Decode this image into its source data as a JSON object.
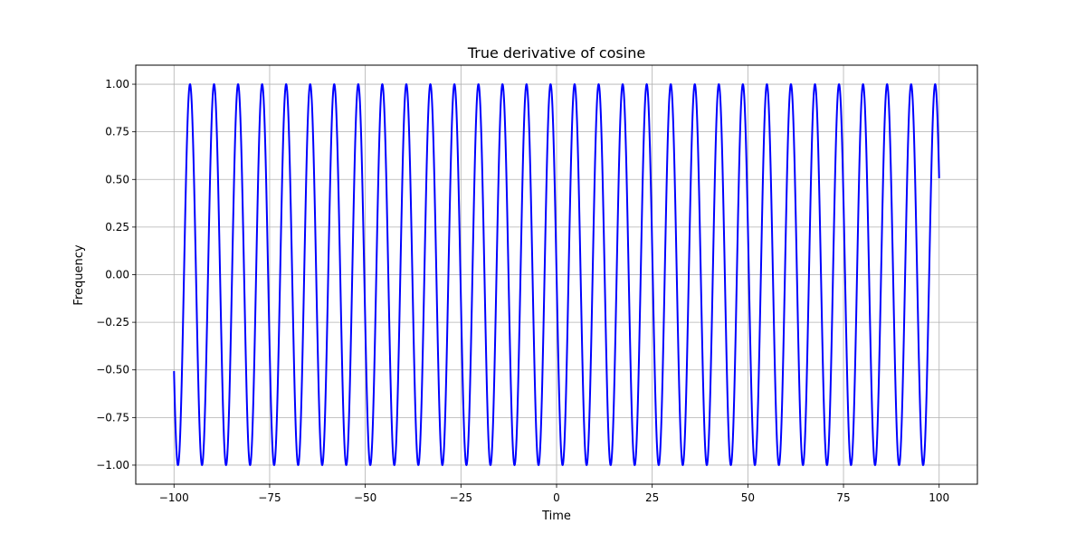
{
  "chart_data": {
    "type": "line",
    "title": "True derivative of cosine",
    "xlabel": "Time",
    "ylabel": "Frequency",
    "xlim": [
      -110,
      110
    ],
    "ylim": [
      -1.1,
      1.1
    ],
    "x_ticks": [
      -100,
      -75,
      -50,
      -25,
      0,
      25,
      50,
      75,
      100
    ],
    "x_tick_labels": [
      "−100",
      "−75",
      "−50",
      "−25",
      "0",
      "25",
      "50",
      "75",
      "100"
    ],
    "y_ticks": [
      -1.0,
      -0.75,
      -0.5,
      -0.25,
      0.0,
      0.25,
      0.5,
      0.75,
      1.0
    ],
    "y_tick_labels": [
      "−1.00",
      "−0.75",
      "−0.50",
      "−0.25",
      "0.00",
      "0.25",
      "0.50",
      "0.75",
      "1.00"
    ],
    "grid": true,
    "series": [
      {
        "function": "-sin(x)",
        "x_range": [
          -100,
          100
        ],
        "color": "#0000ff"
      }
    ]
  }
}
